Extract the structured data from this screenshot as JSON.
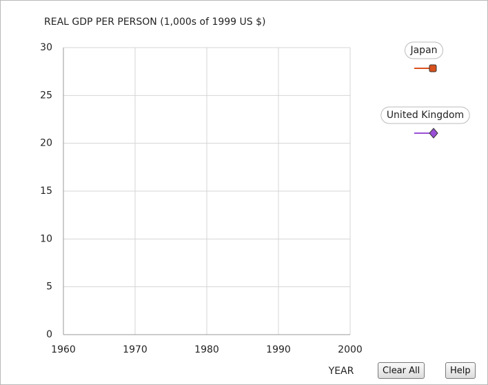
{
  "chart_data": {
    "type": "line",
    "title": "REAL GDP PER PERSON (1,000s of 1999 US $)",
    "x_label": "YEAR",
    "xlim": [
      1960,
      2000
    ],
    "xticks": [
      1960,
      1970,
      1980,
      1990,
      2000
    ],
    "ylim": [
      0,
      30
    ],
    "yticks": [
      0,
      5,
      10,
      15,
      20,
      25,
      30
    ],
    "grid": true,
    "series": [
      {
        "name": "Japan",
        "color": "#d8501c"
      },
      {
        "name": "United Kingdom",
        "color": "#9a4fd6"
      }
    ]
  },
  "buttons": [
    "Clear All",
    "Help"
  ]
}
